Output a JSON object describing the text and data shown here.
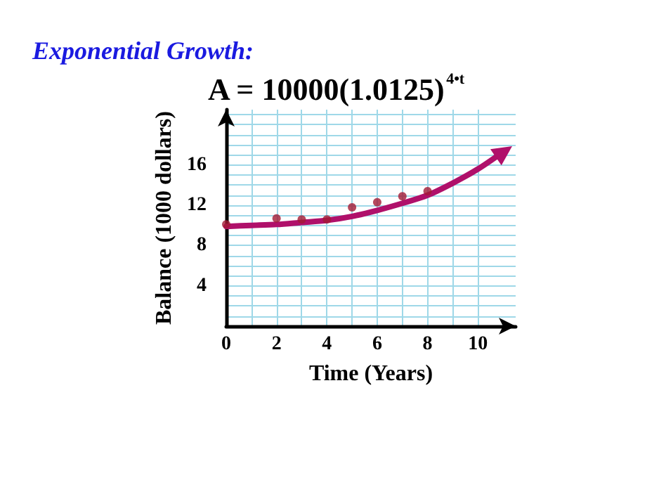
{
  "chart_data": {
    "type": "scatter",
    "title": "Exponential Growth:",
    "subtitle": "A = 10000(1.0125)$^{4•t}$",
    "xlabel": "Time (Years)",
    "ylabel": "Balance (1000 dollars)",
    "x": [
      0,
      2,
      3,
      4,
      5,
      6,
      7,
      8
    ],
    "series": [
      {
        "color": "#a31a35",
        "values": [
          10.1,
          10.7,
          10.6,
          10.6,
          11.8,
          12.3,
          12.9,
          13.4
        ]
      },
      {
        "type": "line",
        "marker": "none",
        "color": "#b0106a",
        "x": [
          0,
          1,
          2,
          3,
          4,
          5,
          6,
          7,
          8,
          9,
          10,
          11
        ],
        "values": [
          9.9,
          10.0,
          10.1,
          10.3,
          10.5,
          10.9,
          11.5,
          12.2,
          13.0,
          14.2,
          15.6,
          17.3
        ]
      }
    ],
    "xlim": [
      0,
      11.5
    ],
    "ylim": [
      0,
      21.5
    ],
    "xticks": [
      0,
      {
        "value": 1,
        "label": null
      },
      2,
      {
        "value": 3,
        "label": null
      },
      4,
      {
        "value": 5,
        "label": null
      },
      6,
      {
        "value": 7,
        "label": null
      },
      8,
      {
        "value": 9,
        "label": null
      },
      10
    ],
    "yticks": [
      {
        "value": 1,
        "label": null
      },
      {
        "value": 2,
        "label": null
      },
      {
        "value": 3,
        "label": null
      },
      4,
      {
        "value": 5,
        "label": null
      },
      {
        "value": 6,
        "label": null
      },
      {
        "value": 7,
        "label": null
      },
      8,
      {
        "value": 9,
        "label": null
      },
      {
        "value": 10,
        "label": null
      },
      {
        "value": 11,
        "label": null
      },
      12,
      {
        "value": 13,
        "label": null
      },
      {
        "value": 14,
        "label": null
      },
      {
        "value": 15,
        "label": null
      },
      16,
      {
        "value": 17,
        "label": null
      },
      {
        "value": 18,
        "label": null
      },
      {
        "value": 19,
        "label": null
      },
      {
        "value": 20,
        "label": null
      },
      {
        "value": 21,
        "label": null
      }
    ],
    "grid": true,
    "marker": "circle",
    "line_style": "solid"
  }
}
